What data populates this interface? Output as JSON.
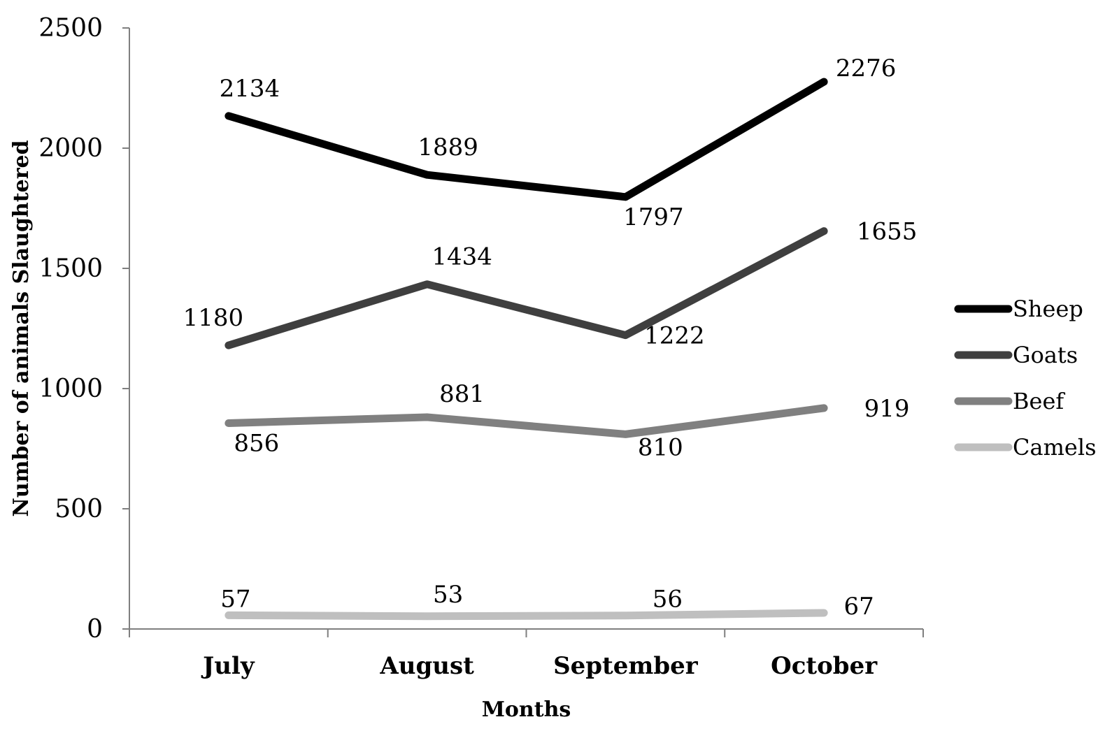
{
  "chart_data": {
    "type": "line",
    "title": "",
    "xlabel": "Months",
    "ylabel": "Number of animals Slaughtered",
    "categories": [
      "July",
      "August",
      "September",
      "October"
    ],
    "ylim": [
      0,
      2500
    ],
    "yticks": [
      0,
      500,
      1000,
      1500,
      2000,
      2500
    ],
    "ytick_labels": [
      "0",
      "500",
      "1000",
      "1500",
      "2000",
      "2500"
    ],
    "grid": false,
    "legend_position": "right",
    "series": [
      {
        "name": "Sheep",
        "color": "#000000",
        "values": [
          2134,
          1889,
          1797,
          2276
        ],
        "labels": [
          "2134",
          "1889",
          "1797",
          "2276"
        ]
      },
      {
        "name": "Goats",
        "color": "#3f3f3f",
        "values": [
          1180,
          1434,
          1222,
          1655
        ],
        "labels": [
          "1180",
          "1434",
          "1222",
          "1655"
        ]
      },
      {
        "name": "Beef",
        "color": "#808080",
        "values": [
          856,
          881,
          810,
          919
        ],
        "labels": [
          "856",
          "881",
          "810",
          "919"
        ]
      },
      {
        "name": "Camels",
        "color": "#bfbfbf",
        "values": [
          57,
          53,
          56,
          67
        ],
        "labels": [
          "57",
          "53",
          "56",
          "67"
        ]
      }
    ]
  }
}
